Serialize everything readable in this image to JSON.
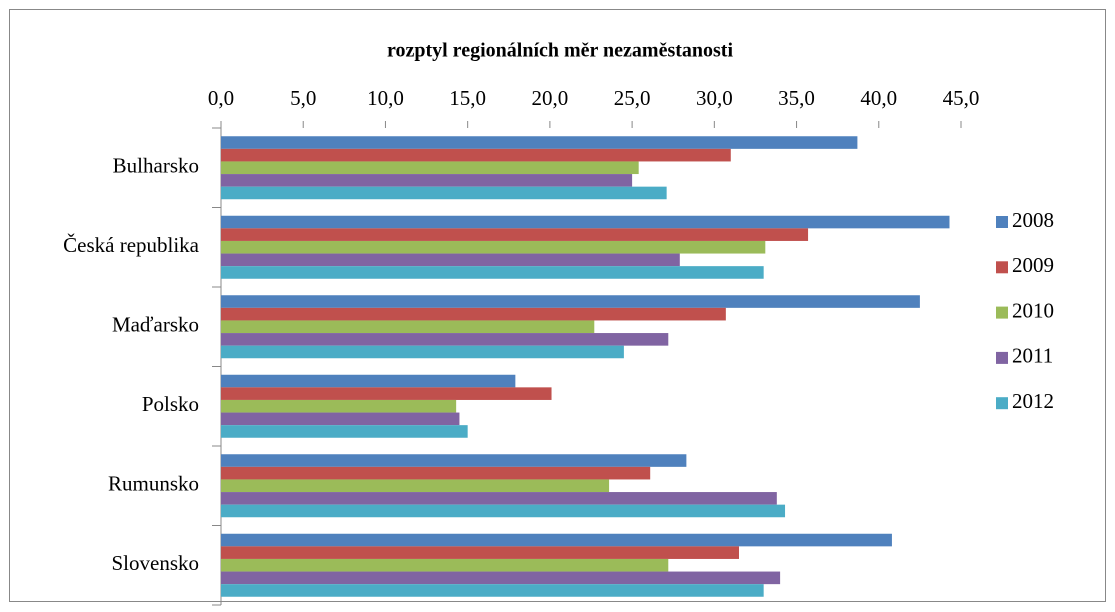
{
  "chart_data": {
    "type": "bar",
    "orientation": "horizontal",
    "title": "rozptyl regionálních měr nezaměstanosti",
    "categories": [
      "Bulharsko",
      "Česká republika",
      "Maďarsko",
      "Polsko",
      "Rumunsko",
      "Slovensko"
    ],
    "series": [
      {
        "name": "2008",
        "color": "#4f81bd",
        "values": [
          38.7,
          44.3,
          42.5,
          17.9,
          28.3,
          40.8
        ]
      },
      {
        "name": "2009",
        "color": "#c0504d",
        "values": [
          31.0,
          35.7,
          30.7,
          20.1,
          26.1,
          31.5
        ]
      },
      {
        "name": "2010",
        "color": "#9bbb59",
        "values": [
          25.4,
          33.1,
          22.7,
          14.3,
          23.6,
          27.2
        ]
      },
      {
        "name": "2011",
        "color": "#8064a2",
        "values": [
          25.0,
          27.9,
          27.2,
          14.5,
          33.8,
          34.0
        ]
      },
      {
        "name": "2012",
        "color": "#4bacc6",
        "values": [
          27.1,
          33.0,
          24.5,
          15.0,
          34.3,
          33.0
        ]
      }
    ],
    "xlim": [
      0,
      45
    ],
    "xticks": [
      {
        "value": 0,
        "label": "0,0"
      },
      {
        "value": 5,
        "label": "5,0"
      },
      {
        "value": 10,
        "label": "10,0"
      },
      {
        "value": 15,
        "label": "15,0"
      },
      {
        "value": 20,
        "label": "20,0"
      },
      {
        "value": 25,
        "label": "25,0"
      },
      {
        "value": 30,
        "label": "30,0"
      },
      {
        "value": 35,
        "label": "35,0"
      },
      {
        "value": 40,
        "label": "40,0"
      },
      {
        "value": 45,
        "label": "45,0"
      }
    ],
    "grid": false,
    "legend": "right"
  }
}
